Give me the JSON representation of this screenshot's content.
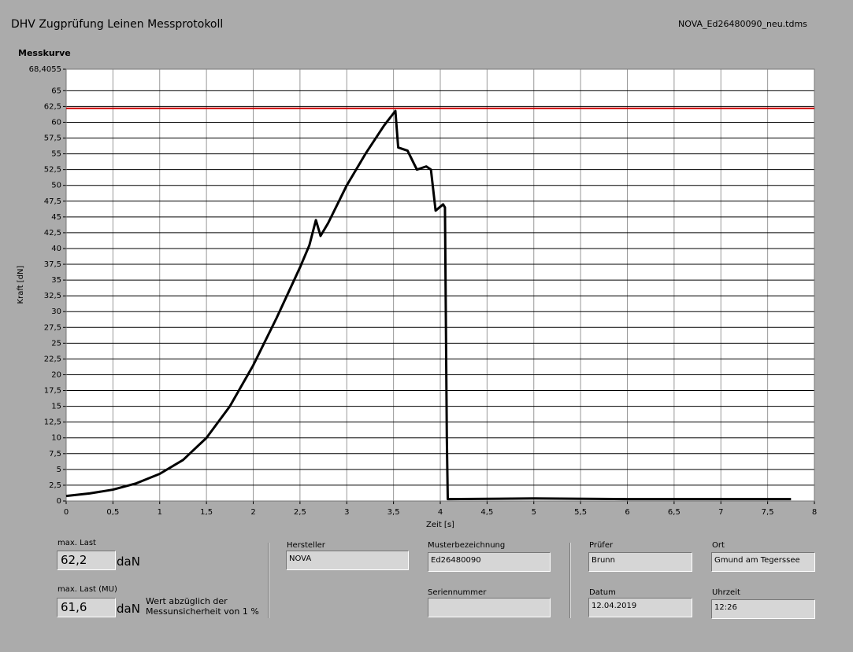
{
  "header": {
    "title": "DHV Zugprüfung Leinen Messprotokoll",
    "file": "NOVA_Ed26480090_neu.tdms"
  },
  "chart_data": {
    "type": "line",
    "title": "Messkurve",
    "x_label": "Zeit [s]",
    "y_label": "Kraft [dN]",
    "x": [
      0,
      0.25,
      0.5,
      0.75,
      1,
      1.25,
      1.5,
      1.75,
      2,
      2.25,
      2.5,
      2.6,
      2.67,
      2.72,
      2.8,
      3,
      3.2,
      3.4,
      3.52,
      3.55,
      3.65,
      3.75,
      3.85,
      3.9,
      3.95,
      4.03,
      4.05,
      4.07,
      4.08,
      5,
      6,
      7,
      7.75
    ],
    "series": [
      {
        "name": "Kraft",
        "color": "#000000",
        "values": [
          0.8,
          1.2,
          1.8,
          2.8,
          4.3,
          6.5,
          10,
          15,
          21.5,
          29,
          37,
          40.5,
          44.5,
          42,
          44,
          50,
          55,
          59.5,
          61.8,
          56,
          55.5,
          52.5,
          53,
          52.5,
          46,
          47,
          46.5,
          10,
          0.3,
          0.4,
          0.3,
          0.3,
          0.3
        ]
      }
    ],
    "max_line": 62.2,
    "max_line_color": "#cc0000",
    "xlim": [
      0,
      8
    ],
    "xticks": [
      0,
      {
        "value": 0.5,
        "label": "0,5"
      },
      1,
      {
        "value": 1.5,
        "label": "1,5"
      },
      2,
      {
        "value": 2.5,
        "label": "2,5"
      },
      3,
      {
        "value": 3.5,
        "label": "3,5"
      },
      4,
      {
        "value": 4.5,
        "label": "4,5"
      },
      5,
      {
        "value": 5.5,
        "label": "5,5"
      },
      6,
      {
        "value": 6.5,
        "label": "6,5"
      },
      7,
      {
        "value": 7.5,
        "label": "7,5"
      },
      8
    ],
    "ylim": [
      0,
      68.4055
    ],
    "yticks": [
      0,
      {
        "value": 2.5,
        "label": "2,5"
      },
      5,
      {
        "value": 7.5,
        "label": "7,5"
      },
      10,
      {
        "value": 12.5,
        "label": "12,5"
      },
      15,
      {
        "value": 17.5,
        "label": "17,5"
      },
      20,
      {
        "value": 22.5,
        "label": "22,5"
      },
      25,
      {
        "value": 27.5,
        "label": "27,5"
      },
      30,
      {
        "value": 32.5,
        "label": "32,5"
      },
      35,
      {
        "value": 37.5,
        "label": "37,5"
      },
      40,
      {
        "value": 42.5,
        "label": "42,5"
      },
      45,
      {
        "value": 47.5,
        "label": "47,5"
      },
      50,
      {
        "value": 52.5,
        "label": "52,5"
      },
      55,
      {
        "value": 57.5,
        "label": "57,5"
      },
      60,
      {
        "value": 62.5,
        "label": "62,5"
      },
      65,
      {
        "value": 68.4055,
        "label": "68,4055"
      }
    ],
    "grid": true
  },
  "fields": {
    "max_last": {
      "label": "max. Last",
      "value": "62,2",
      "unit": "daN"
    },
    "max_last_mu": {
      "label": "max. Last (MU)",
      "value": "61,6",
      "unit": "daN",
      "note": "Wert abzüglich der Messunsicherheit von 1 %"
    },
    "hersteller": {
      "label": "Hersteller",
      "value": "NOVA"
    },
    "musterbezeichnung": {
      "label": "Musterbezeichnung",
      "value": "Ed26480090"
    },
    "seriennummer": {
      "label": "Seriennummer"
    },
    "pruefer": {
      "label": "Prüfer",
      "value": "Brunn"
    },
    "ort": {
      "label": "Ort",
      "value": "Gmund am Tegerssee"
    },
    "datum": {
      "label": "Datum",
      "value": "12.04.2019"
    },
    "uhrzeit": {
      "label": "Uhrzeit",
      "value": "12:26"
    }
  }
}
